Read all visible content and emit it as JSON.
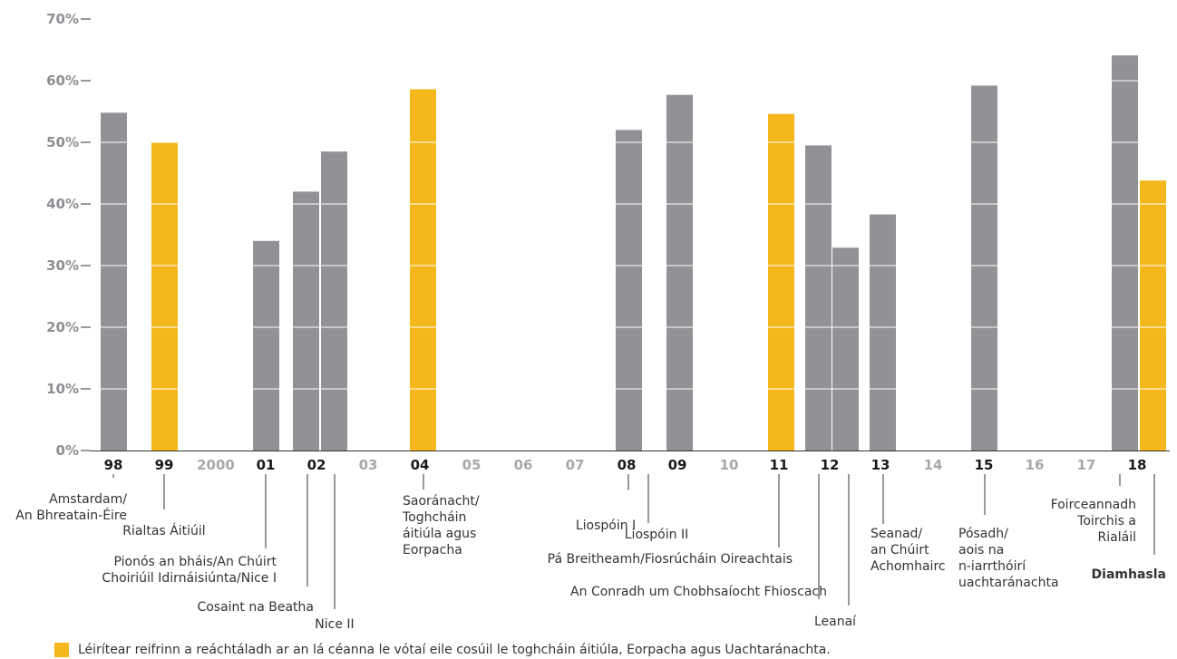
{
  "colors": {
    "grey": "#929296",
    "yellow": "#f5b81c",
    "axis_bold": "#1a1a1a",
    "axis_light": "#a8a8ac"
  },
  "chart_data": {
    "type": "bar",
    "ylim": [
      0,
      70
    ],
    "yticks": [
      "0%",
      "10%",
      "20%",
      "30%",
      "40%",
      "50%",
      "60%",
      "70%"
    ],
    "grid": "horizontal white lines over bars",
    "x_ticks": [
      {
        "label": "98",
        "bold": true
      },
      {
        "label": "99",
        "bold": true
      },
      {
        "label": "2000",
        "bold": false
      },
      {
        "label": "01",
        "bold": true
      },
      {
        "label": "02",
        "bold": true
      },
      {
        "label": "03",
        "bold": false
      },
      {
        "label": "04",
        "bold": true
      },
      {
        "label": "05",
        "bold": false
      },
      {
        "label": "06",
        "bold": false
      },
      {
        "label": "07",
        "bold": false
      },
      {
        "label": "08",
        "bold": true
      },
      {
        "label": "09",
        "bold": true
      },
      {
        "label": "10",
        "bold": false
      },
      {
        "label": "11",
        "bold": true
      },
      {
        "label": "12",
        "bold": true
      },
      {
        "label": "13",
        "bold": true
      },
      {
        "label": "14",
        "bold": false
      },
      {
        "label": "15",
        "bold": true
      },
      {
        "label": "16",
        "bold": false
      },
      {
        "label": "17",
        "bold": false
      },
      {
        "label": "18",
        "bold": true
      }
    ],
    "bars": [
      {
        "year": "98",
        "value": 54.8,
        "color": "grey",
        "lines": [
          "Amstardam/",
          "An Bhreatain-Éire"
        ]
      },
      {
        "year": "99",
        "value": 50.0,
        "color": "yellow",
        "lines": [
          "Rialtas Áitiúil"
        ]
      },
      {
        "year": "01",
        "value": 34.0,
        "color": "grey",
        "lines": [
          "Pionós an bháis/An Chúirt",
          "Choiriúil Idirnáisiúnta/Nice I"
        ]
      },
      {
        "year": "02",
        "value": 42.0,
        "color": "grey",
        "lines": [
          "Cosaint na Beatha"
        ]
      },
      {
        "year": "02",
        "value": 48.5,
        "color": "grey",
        "lines": [
          "Nice II"
        ]
      },
      {
        "year": "04",
        "value": 58.6,
        "color": "yellow",
        "lines": [
          "Saoránacht/",
          "Toghcháin",
          "áitiúla agus",
          "Eorpacha"
        ]
      },
      {
        "year": "08",
        "value": 52.0,
        "color": "grey",
        "lines": [
          "Liospóin I"
        ]
      },
      {
        "year": "09",
        "value": 57.7,
        "color": "grey",
        "lines": [
          "Liospóin II"
        ]
      },
      {
        "year": "11",
        "value": 54.6,
        "color": "yellow",
        "lines": [
          "Pá Breitheamh/Fiosrúcháin Oireachtais"
        ]
      },
      {
        "year": "12",
        "value": 49.5,
        "color": "grey",
        "lines": [
          "An Conradh um Chobhsaíocht Fhioscach"
        ]
      },
      {
        "year": "12",
        "value": 32.9,
        "color": "grey",
        "lines": [
          "Leanaí"
        ]
      },
      {
        "year": "13",
        "value": 38.3,
        "color": "grey",
        "lines": [
          "Seanad/",
          "an Chúirt",
          "Achomhairc"
        ]
      },
      {
        "year": "15",
        "value": 59.2,
        "color": "grey",
        "lines": [
          "Pósadh/",
          "aois na",
          "n-iarrthóirí",
          "uachtaránachta"
        ]
      },
      {
        "year": "18",
        "value": 64.1,
        "color": "grey",
        "lines": [
          "Foirceannadh",
          "Toirchis a",
          "Rialáil"
        ]
      },
      {
        "year": "18",
        "value": 43.8,
        "color": "yellow",
        "lines": [
          "Diamhasla"
        ],
        "bold": true
      }
    ],
    "legend": [
      {
        "color": "yellow",
        "label": "Léirítear reifrinn a reáchtáladh ar an lá céanna le vótaí eile cosúil le toghcháin áitiúla, Eorpacha agus Uachtaránachta."
      }
    ]
  }
}
